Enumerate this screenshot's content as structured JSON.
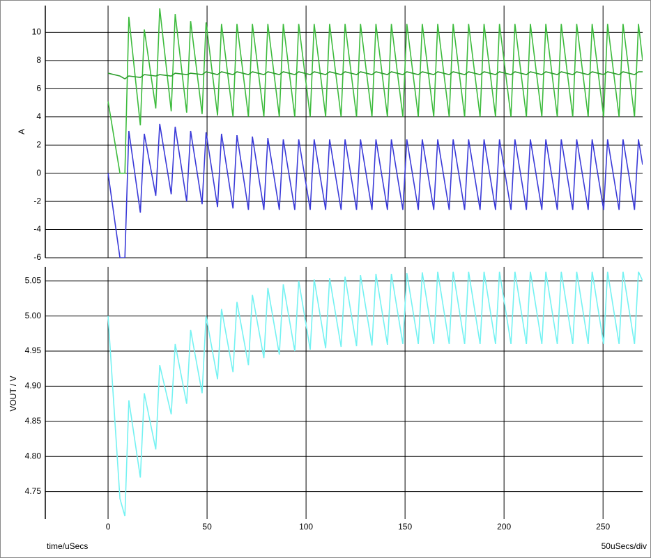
{
  "chart_data": [
    {
      "type": "line",
      "y_label": "A",
      "ylim": [
        -6,
        11.9
      ],
      "yticks": [
        -6,
        -4,
        -2,
        0,
        2,
        4,
        6,
        8,
        10
      ],
      "grid": true,
      "x": [
        0,
        6,
        8.5,
        10.5,
        16.3,
        18.3,
        24.1,
        26.1,
        31.9,
        33.9,
        39.7,
        41.7,
        47.5,
        49.5,
        55.3,
        57.3,
        63.1,
        65.1,
        70.9,
        72.9,
        78.7,
        80.7,
        86.5,
        88.5,
        94.3,
        96.3,
        102.1,
        104.1,
        109.9,
        111.9,
        117.7,
        119.7,
        125.5,
        127.5,
        133.3,
        135.3,
        141.1,
        143.1,
        148.9,
        150.9,
        156.7,
        158.7,
        164.5,
        166.5,
        172.3,
        174.3,
        180.1,
        182.1,
        187.9,
        189.9,
        195.7,
        197.7,
        203.5,
        205.5,
        211.3,
        213.3,
        219.1,
        221.1,
        226.9,
        228.9,
        234.7,
        236.7,
        242.5,
        244.5,
        250.3,
        252.3,
        258.1,
        260.1,
        265.9,
        267.9,
        270
      ],
      "series": [
        {
          "color": "#3dbb3d",
          "values": [
            5.1,
            0,
            0,
            11.1,
            3.4,
            10.2,
            4.6,
            11.7,
            4.4,
            11.3,
            4.3,
            10.8,
            4.2,
            10.7,
            4.1,
            10.6,
            4.0,
            10.6,
            4.0,
            10.6,
            4.0,
            10.6,
            4.0,
            10.6,
            4.0,
            10.6,
            4.0,
            10.6,
            4.0,
            10.6,
            4.0,
            10.6,
            4.0,
            10.6,
            4.0,
            10.6,
            4.0,
            10.6,
            4.0,
            10.6,
            4.0,
            10.6,
            4.0,
            10.6,
            4.0,
            10.6,
            4.0,
            10.6,
            4.0,
            10.6,
            4.0,
            10.6,
            4.0,
            10.6,
            4.0,
            10.6,
            4.0,
            10.6,
            4.0,
            10.6,
            4.0,
            10.6,
            4.0,
            10.6,
            4.0,
            10.6,
            4.0,
            10.6,
            4.0,
            10.6,
            8.0
          ]
        },
        {
          "color": "#3a3ad8",
          "values": [
            0,
            -6,
            -6,
            3.0,
            -2.8,
            2.8,
            -1.6,
            3.5,
            -1.5,
            3.3,
            -2.0,
            3.0,
            -2.2,
            2.9,
            -2.4,
            2.8,
            -2.5,
            2.7,
            -2.6,
            2.6,
            -2.6,
            2.5,
            -2.6,
            2.4,
            -2.6,
            2.4,
            -2.6,
            2.4,
            -2.6,
            2.4,
            -2.6,
            2.4,
            -2.6,
            2.4,
            -2.6,
            2.4,
            -2.6,
            2.4,
            -2.6,
            2.4,
            -2.6,
            2.4,
            -2.6,
            2.4,
            -2.6,
            2.4,
            -2.6,
            2.4,
            -2.6,
            2.4,
            -2.6,
            2.4,
            -2.6,
            2.4,
            -2.6,
            2.4,
            -2.6,
            2.4,
            -2.6,
            2.4,
            -2.6,
            2.4,
            -2.6,
            2.4,
            -2.6,
            2.4,
            -2.6,
            2.4,
            -2.6,
            2.4,
            0.6
          ]
        },
        {
          "color": "#2f9f2f",
          "values": [
            7.1,
            6.9,
            6.7,
            6.9,
            6.8,
            7.0,
            6.9,
            7.0,
            6.9,
            7.1,
            7.0,
            7.1,
            7.0,
            7.2,
            7.0,
            7.2,
            7.0,
            7.2,
            7.0,
            7.2,
            7.0,
            7.2,
            7.0,
            7.2,
            7.0,
            7.2,
            7.0,
            7.2,
            7.0,
            7.2,
            7.0,
            7.2,
            7.0,
            7.2,
            7.0,
            7.2,
            7.0,
            7.2,
            7.0,
            7.2,
            7.0,
            7.2,
            7.0,
            7.2,
            7.0,
            7.2,
            7.0,
            7.2,
            7.0,
            7.2,
            7.0,
            7.2,
            7.0,
            7.2,
            7.0,
            7.2,
            7.0,
            7.2,
            7.0,
            7.2,
            7.0,
            7.2,
            7.0,
            7.2,
            7.0,
            7.2,
            7.0,
            7.2,
            7.0,
            7.2,
            7.2
          ]
        }
      ]
    },
    {
      "type": "line",
      "y_label": "VOUT / V",
      "x_label": "time/uSecs",
      "annotation": "50uSecs/div",
      "xlim": [
        -31.7,
        270
      ],
      "xticks": [
        0,
        50,
        100,
        150,
        200,
        250
      ],
      "ylim": [
        4.711,
        5.07
      ],
      "yticks": [
        4.75,
        {
          "value": 4.8,
          "label": "4.80"
        },
        4.85,
        {
          "value": 4.9,
          "label": "4.90"
        },
        4.95,
        {
          "value": 5,
          "label": "5.00"
        },
        5.05
      ],
      "grid": true,
      "x": [
        0,
        6,
        8.5,
        10.5,
        16.3,
        18.3,
        24.1,
        26.1,
        31.9,
        33.9,
        39.7,
        41.7,
        47.5,
        49.5,
        55.3,
        57.3,
        63.1,
        65.1,
        70.9,
        72.9,
        78.7,
        80.7,
        86.5,
        88.5,
        94.3,
        96.3,
        102.1,
        104.1,
        109.9,
        111.9,
        117.7,
        119.7,
        125.5,
        127.5,
        133.3,
        135.3,
        141.1,
        143.1,
        148.9,
        150.9,
        156.7,
        158.7,
        164.5,
        166.5,
        172.3,
        174.3,
        180.1,
        182.1,
        187.9,
        189.9,
        195.7,
        197.7,
        203.5,
        205.5,
        211.3,
        213.3,
        219.1,
        221.1,
        226.9,
        228.9,
        234.7,
        236.7,
        242.5,
        244.5,
        250.3,
        252.3,
        258.1,
        260.1,
        265.9,
        267.9,
        270
      ],
      "series": [
        {
          "color": "#74f2f2",
          "values": [
            5.0,
            4.74,
            4.715,
            4.88,
            4.77,
            4.89,
            4.81,
            4.93,
            4.86,
            4.96,
            4.875,
            4.98,
            4.89,
            5.0,
            4.91,
            5.01,
            4.92,
            5.02,
            4.93,
            5.03,
            4.94,
            5.04,
            4.945,
            5.045,
            4.95,
            5.05,
            4.952,
            5.052,
            4.954,
            5.054,
            4.956,
            5.056,
            4.957,
            5.058,
            4.958,
            5.06,
            4.959,
            5.06,
            4.96,
            5.061,
            4.96,
            5.062,
            4.96,
            5.063,
            4.96,
            5.063,
            4.96,
            5.063,
            4.96,
            5.063,
            4.96,
            5.063,
            4.96,
            5.063,
            4.96,
            5.063,
            4.96,
            5.063,
            4.96,
            5.063,
            4.96,
            5.063,
            4.96,
            5.063,
            4.96,
            5.063,
            4.96,
            5.063,
            4.96,
            5.063,
            5.05
          ]
        }
      ]
    }
  ]
}
